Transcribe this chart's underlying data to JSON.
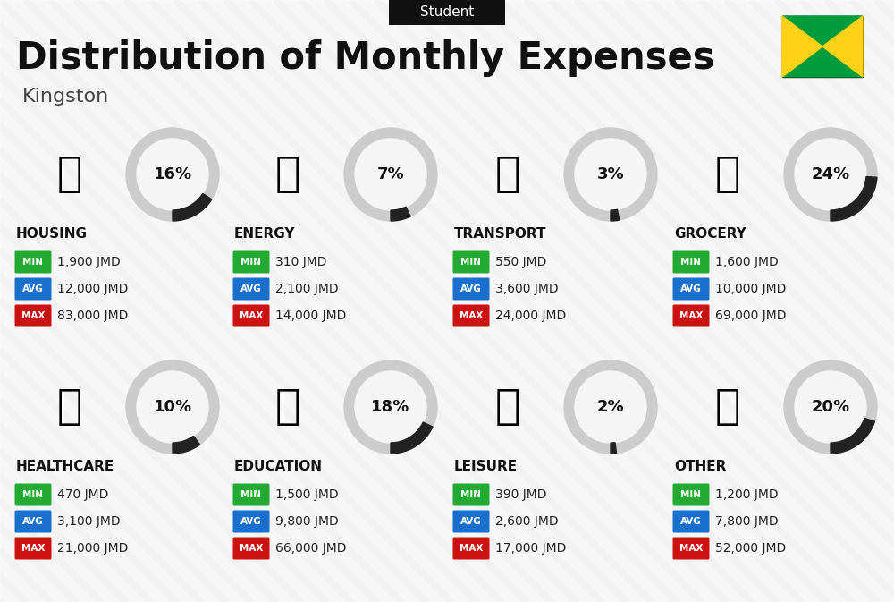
{
  "title": "Distribution of Monthly Expenses",
  "subtitle": "Student",
  "city": "Kingston",
  "background_color": "#efefef",
  "title_color": "#111111",
  "city_color": "#444444",
  "categories": [
    {
      "name": "HOUSING",
      "pct": 16,
      "min": "1,900 JMD",
      "avg": "12,000 JMD",
      "max": "83,000 JMD",
      "row": 0,
      "col": 0,
      "icon": "🏗"
    },
    {
      "name": "ENERGY",
      "pct": 7,
      "min": "310 JMD",
      "avg": "2,100 JMD",
      "max": "14,000 JMD",
      "row": 0,
      "col": 1,
      "icon": "⚡"
    },
    {
      "name": "TRANSPORT",
      "pct": 3,
      "min": "550 JMD",
      "avg": "3,600 JMD",
      "max": "24,000 JMD",
      "row": 0,
      "col": 2,
      "icon": "🚌"
    },
    {
      "name": "GROCERY",
      "pct": 24,
      "min": "1,600 JMD",
      "avg": "10,000 JMD",
      "max": "69,000 JMD",
      "row": 0,
      "col": 3,
      "icon": "🛒"
    },
    {
      "name": "HEALTHCARE",
      "pct": 10,
      "min": "470 JMD",
      "avg": "3,100 JMD",
      "max": "21,000 JMD",
      "row": 1,
      "col": 0,
      "icon": "❤"
    },
    {
      "name": "EDUCATION",
      "pct": 18,
      "min": "1,500 JMD",
      "avg": "9,800 JMD",
      "max": "66,000 JMD",
      "row": 1,
      "col": 1,
      "icon": "🎓"
    },
    {
      "name": "LEISURE",
      "pct": 2,
      "min": "390 JMD",
      "avg": "2,600 JMD",
      "max": "17,000 JMD",
      "row": 1,
      "col": 2,
      "icon": "🛍"
    },
    {
      "name": "OTHER",
      "pct": 20,
      "min": "1,200 JMD",
      "avg": "7,800 JMD",
      "max": "52,000 JMD",
      "row": 1,
      "col": 3,
      "icon": "💛"
    }
  ],
  "min_color": "#22aa33",
  "avg_color": "#1a6fcc",
  "max_color": "#cc1111",
  "circle_bg": "#cccccc",
  "circle_fill": "#f5f5f5",
  "arc_color": "#222222",
  "cat_color": "#111111",
  "stripe_color": "#dddddd",
  "val_color": "#222222"
}
